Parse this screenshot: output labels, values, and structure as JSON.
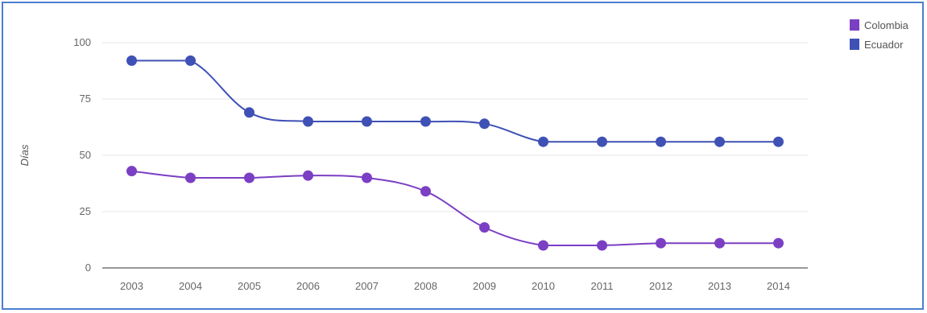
{
  "chart_data": {
    "type": "line",
    "title": "",
    "xlabel": "",
    "ylabel": "Días",
    "ylim": [
      0,
      100
    ],
    "yticks": [
      0,
      25,
      50,
      75,
      100
    ],
    "categories": [
      "2003",
      "2004",
      "2005",
      "2006",
      "2007",
      "2008",
      "2009",
      "2010",
      "2011",
      "2012",
      "2013",
      "2014"
    ],
    "series": [
      {
        "name": "Colombia",
        "color": "#7b3fc4",
        "values": [
          43,
          40,
          40,
          41,
          40,
          34,
          18,
          10,
          10,
          11,
          11,
          11
        ]
      },
      {
        "name": "Ecuador",
        "color": "#3f51b5",
        "values": [
          92,
          92,
          69,
          65,
          65,
          65,
          64,
          56,
          56,
          56,
          56,
          56
        ]
      }
    ],
    "grid": true,
    "legend_position": "top-right",
    "smooth": true
  }
}
